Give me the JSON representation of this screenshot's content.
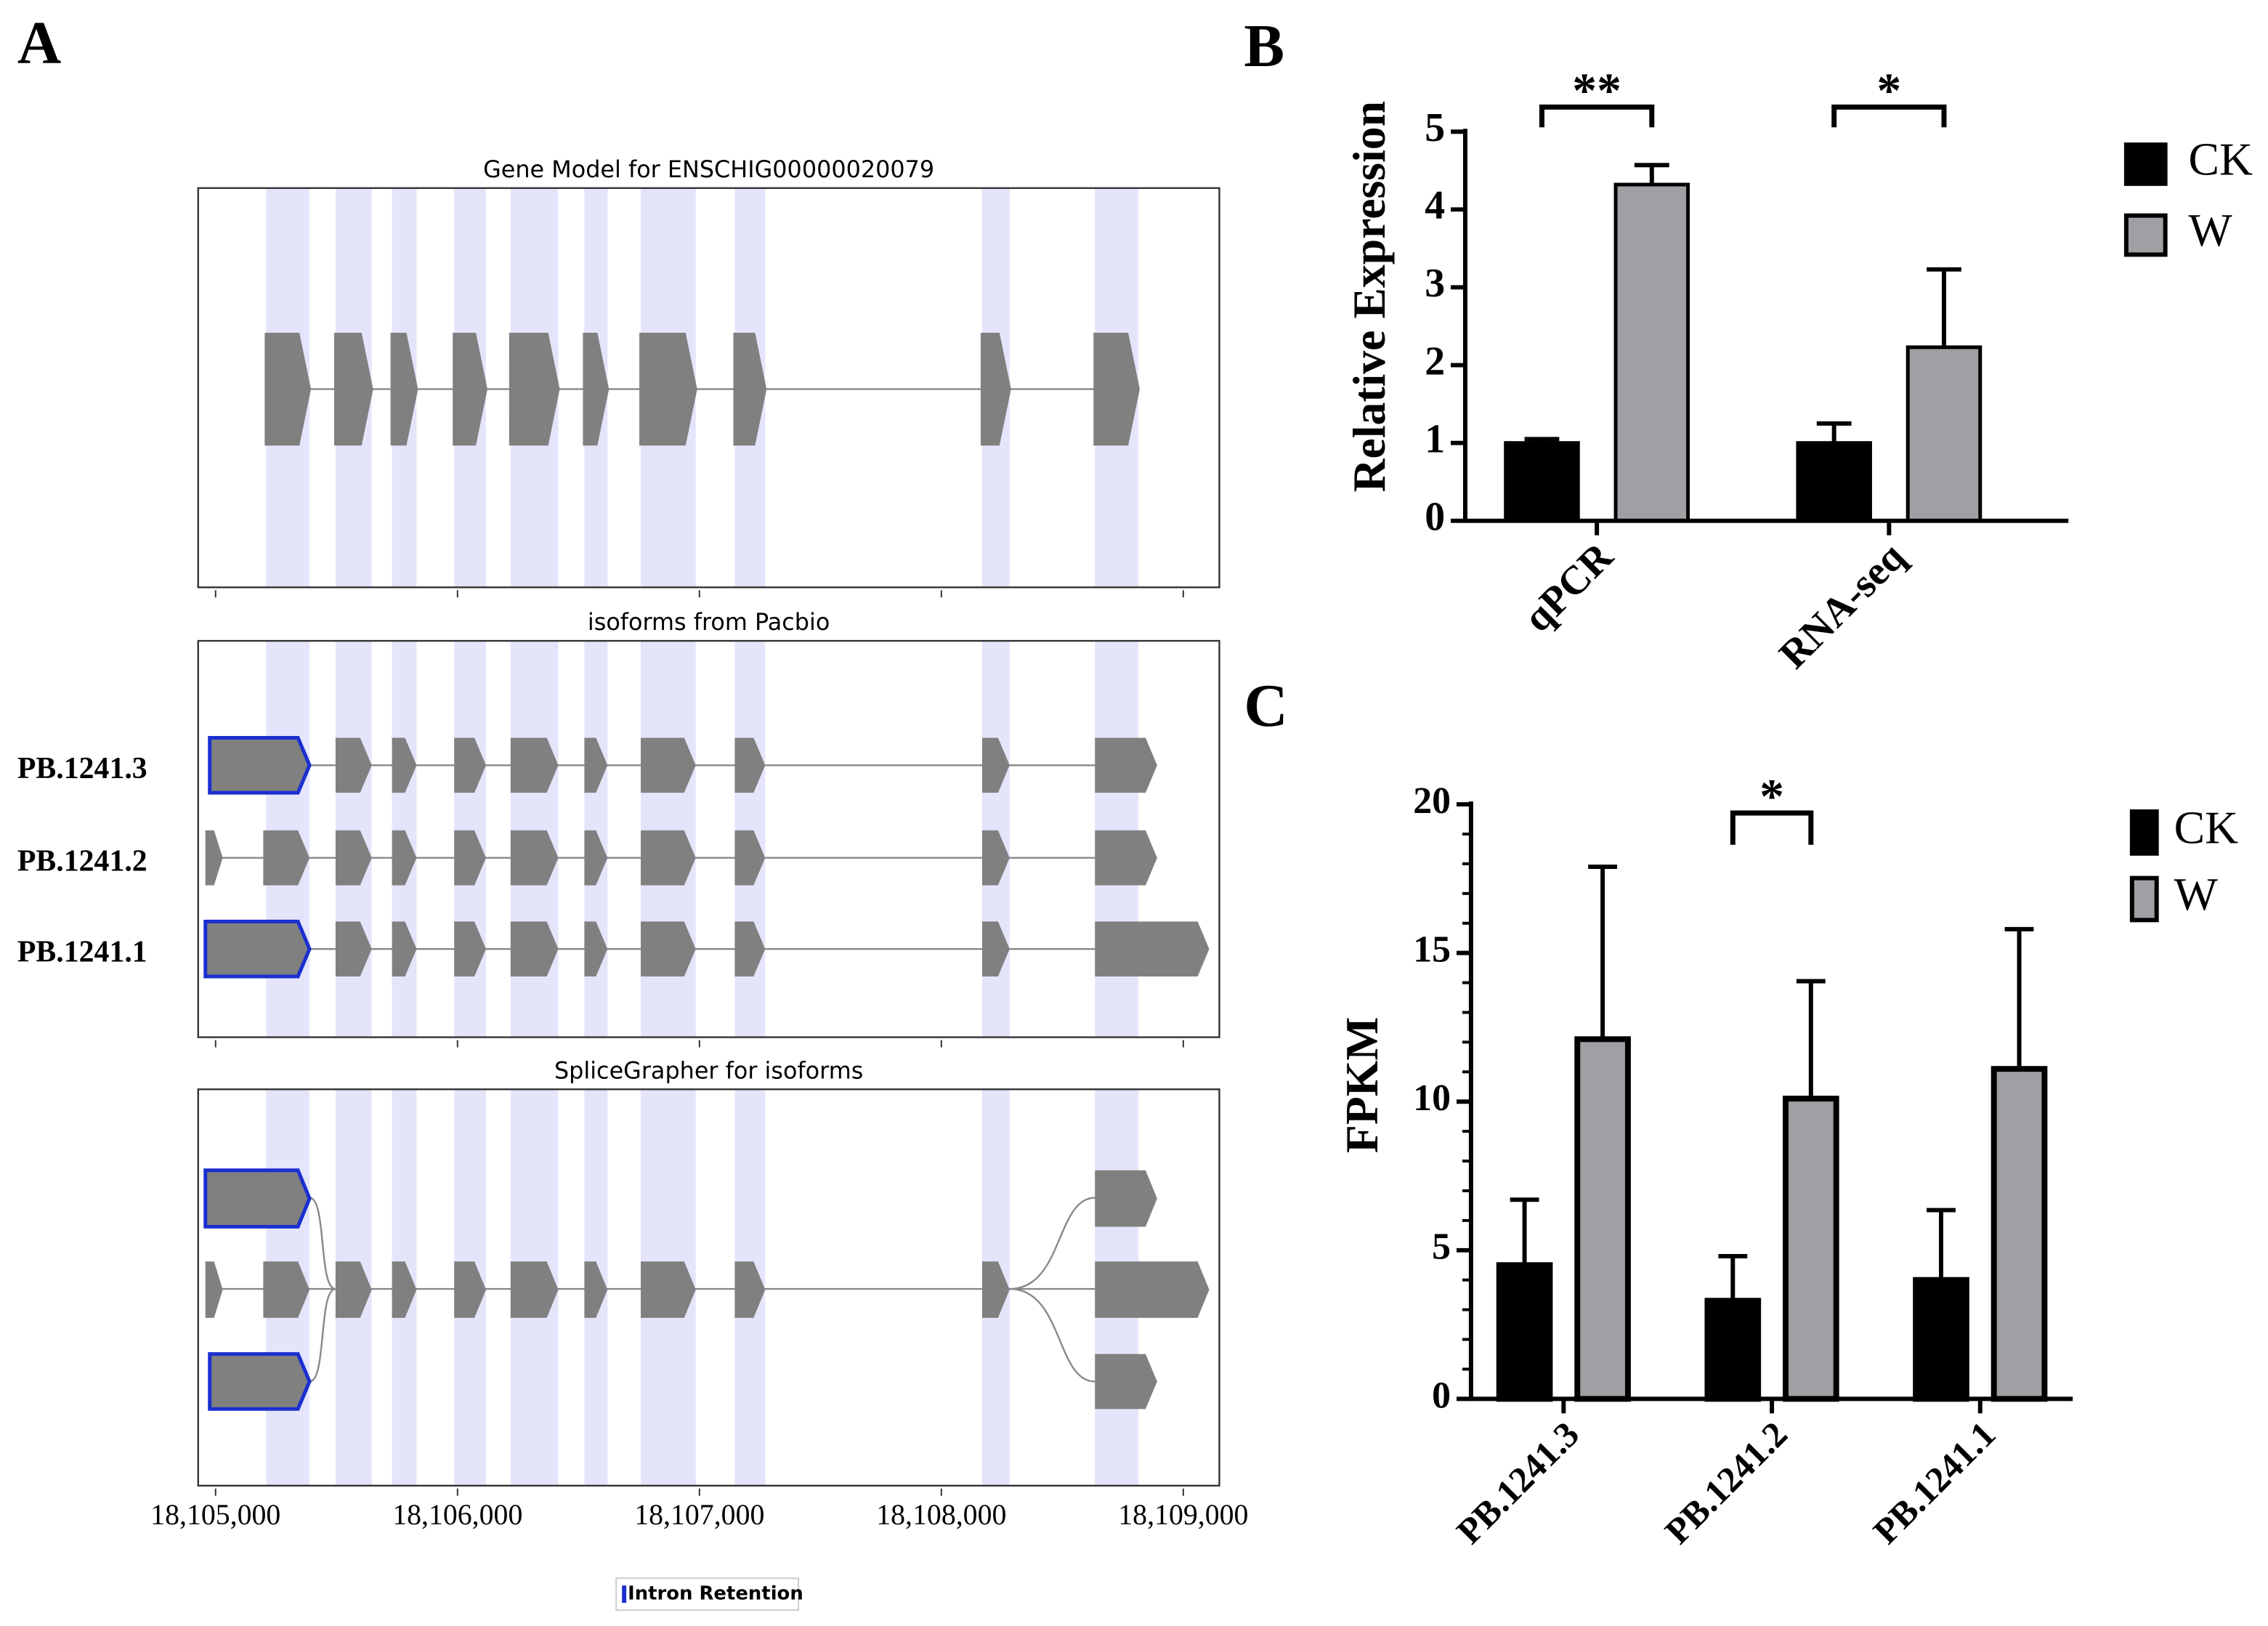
{
  "chart_data": [
    {
      "type": "track",
      "panel": "A",
      "tracks": [
        {
          "title": "Gene Model for ENSCHIG00000020079"
        },
        {
          "title": "isoforms from Pacbio"
        },
        {
          "title": "SpliceGrapher for isoforms"
        }
      ],
      "isoforms": [
        "PB.1241.3",
        "PB.1241.2",
        "PB.1241.1"
      ],
      "xlim": [
        18104928,
        18109149
      ],
      "xticks": [
        {
          "value": 18105000,
          "label": "18,105,000"
        },
        {
          "value": 18106000,
          "label": "18,106,000"
        },
        {
          "value": 18107000,
          "label": "18,107,000"
        },
        {
          "value": 18108000,
          "label": "18,108,000"
        },
        {
          "value": 18109000,
          "label": "18,109,000"
        }
      ],
      "legend": "Intron Retention"
    },
    {
      "type": "bar",
      "panel": "B",
      "ylabel": "Relative Expression",
      "categories": [
        "qPCR",
        "RNA-seq"
      ],
      "series": [
        {
          "name": "CK",
          "color": "#000000",
          "values": [
            1,
            1
          ],
          "errors": [
            0.05,
            0.25
          ]
        },
        {
          "name": "W",
          "color": "#a0a0a4",
          "values": [
            4.32,
            2.23
          ],
          "errors": [
            0.25,
            1.0
          ]
        }
      ],
      "ylim": [
        0,
        5
      ],
      "yticks": [
        0,
        1,
        2,
        3,
        4,
        5
      ],
      "significance": [
        {
          "category": 0,
          "label": "**"
        },
        {
          "category": 1,
          "label": "*"
        }
      ]
    },
    {
      "type": "bar",
      "panel": "C",
      "ylabel": "FPKM",
      "categories": [
        "PB.1241.3",
        "PB.1241.2",
        "PB.1241.1"
      ],
      "series": [
        {
          "name": "CK",
          "color": "#000000",
          "values": [
            4.5,
            3.3,
            4.0
          ],
          "errors": [
            2.2,
            1.5,
            2.35
          ]
        },
        {
          "name": "W",
          "color": "#a0a0a4",
          "values": [
            12.1,
            10.1,
            11.1
          ],
          "errors": [
            5.8,
            3.95,
            4.7
          ]
        }
      ],
      "ylim": [
        0,
        20
      ],
      "yticks": [
        0,
        5,
        10,
        15,
        20
      ],
      "significance": [
        {
          "category": 1,
          "label": "*"
        }
      ]
    }
  ]
}
